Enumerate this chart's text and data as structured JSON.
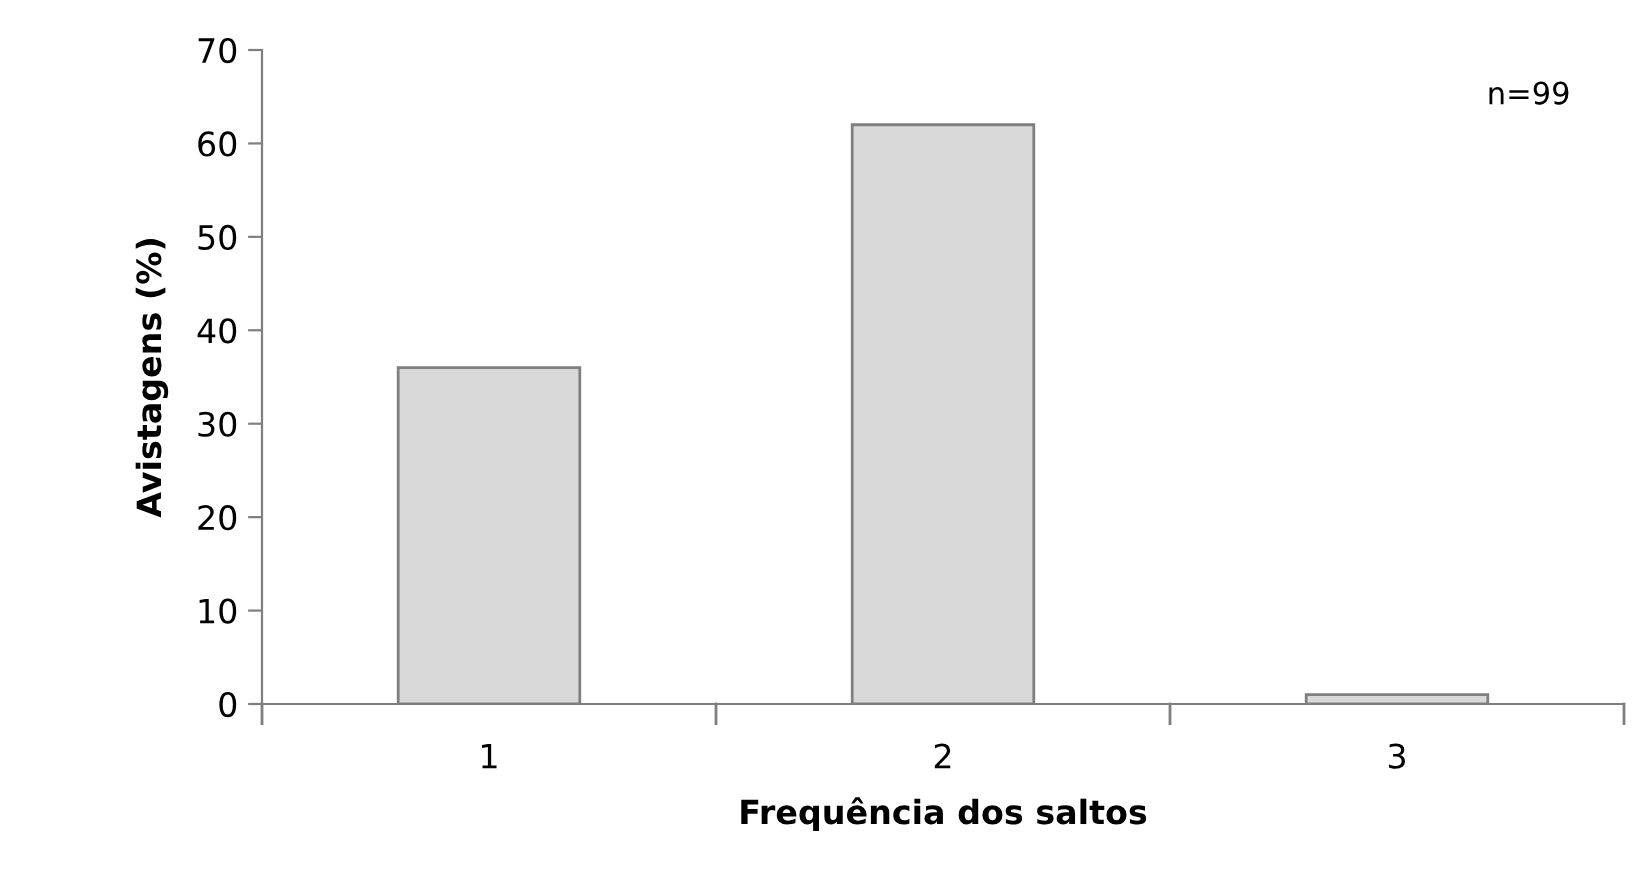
{
  "chart_data": {
    "type": "bar",
    "xlabel": "Frequência dos saltos",
    "ylabel": "Avistagens (%)",
    "categories": [
      "1",
      "2",
      "3"
    ],
    "values": [
      36,
      62,
      1
    ],
    "color": "#d9d9d9",
    "ylim": [
      0,
      70
    ],
    "yticks": [
      0,
      10,
      20,
      30,
      40,
      50,
      60,
      70
    ],
    "grid": false,
    "legend": false,
    "annotations": [
      "n=99"
    ]
  }
}
